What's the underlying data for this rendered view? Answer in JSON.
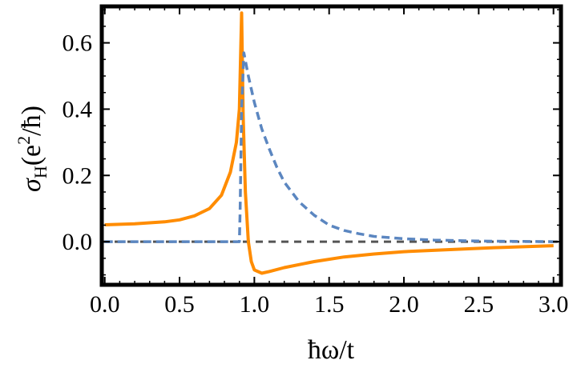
{
  "chart_data": {
    "type": "line",
    "xlabel": "ħω/t",
    "ylabel": "σH(e²/ħ)",
    "ylabel_parts": {
      "sigma": "σ",
      "sub": "H",
      "open": "(e",
      "sup": "2",
      "close": "/ħ)"
    },
    "xlim": [
      -0.02,
      3.05
    ],
    "ylim": [
      -0.13,
      0.71
    ],
    "x_ticks": [
      0.0,
      0.5,
      1.0,
      1.5,
      2.0,
      2.5,
      3.0
    ],
    "x_tick_labels": [
      "0.0",
      "0.5",
      "1.0",
      "1.5",
      "2.0",
      "2.5",
      "3.0"
    ],
    "y_ticks": [
      0.0,
      0.2,
      0.4,
      0.6
    ],
    "y_tick_labels": [
      "0.0",
      "0.2",
      "0.4",
      "0.6"
    ],
    "grid": false,
    "reference_line": {
      "y": 0.0,
      "style": "dashed",
      "color": "#555555"
    },
    "series": [
      {
        "style": "solid",
        "color": "#ff8c00",
        "points": [
          [
            0.0,
            0.051
          ],
          [
            0.2,
            0.054
          ],
          [
            0.4,
            0.06
          ],
          [
            0.5,
            0.066
          ],
          [
            0.6,
            0.078
          ],
          [
            0.7,
            0.1
          ],
          [
            0.78,
            0.14
          ],
          [
            0.84,
            0.21
          ],
          [
            0.88,
            0.3
          ],
          [
            0.9,
            0.4
          ],
          [
            0.915,
            0.69
          ],
          [
            0.925,
            0.38
          ],
          [
            0.94,
            0.15
          ],
          [
            0.96,
            0.0
          ],
          [
            0.98,
            -0.06
          ],
          [
            1.0,
            -0.085
          ],
          [
            1.05,
            -0.095
          ],
          [
            1.1,
            -0.09
          ],
          [
            1.2,
            -0.078
          ],
          [
            1.4,
            -0.06
          ],
          [
            1.6,
            -0.046
          ],
          [
            1.8,
            -0.037
          ],
          [
            2.0,
            -0.03
          ],
          [
            2.2,
            -0.026
          ],
          [
            2.4,
            -0.022
          ],
          [
            2.6,
            -0.018
          ],
          [
            2.8,
            -0.015
          ],
          [
            3.0,
            -0.012
          ]
        ]
      },
      {
        "style": "dashed",
        "color": "#5b86c0",
        "points": [
          [
            0.0,
            0.0
          ],
          [
            0.5,
            0.0
          ],
          [
            0.9,
            0.0
          ],
          [
            0.905,
            0.09
          ],
          [
            0.915,
            0.4
          ],
          [
            0.93,
            0.57
          ],
          [
            0.96,
            0.5
          ],
          [
            1.0,
            0.42
          ],
          [
            1.05,
            0.34
          ],
          [
            1.1,
            0.28
          ],
          [
            1.15,
            0.225
          ],
          [
            1.2,
            0.18
          ],
          [
            1.3,
            0.12
          ],
          [
            1.4,
            0.08
          ],
          [
            1.5,
            0.05
          ],
          [
            1.6,
            0.034
          ],
          [
            1.7,
            0.024
          ],
          [
            1.8,
            0.016
          ],
          [
            2.0,
            0.009
          ],
          [
            2.2,
            0.005
          ],
          [
            2.5,
            0.002
          ],
          [
            3.0,
            0.0
          ]
        ]
      }
    ]
  }
}
